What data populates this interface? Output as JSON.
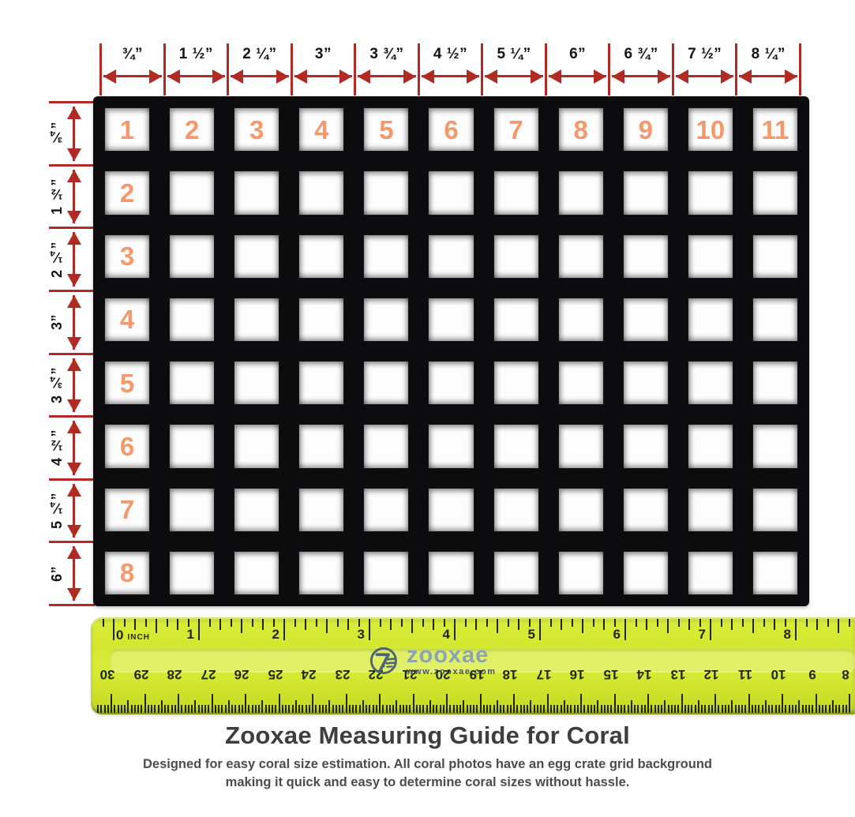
{
  "colors": {
    "arrow_red": "#b22a24",
    "number_orange": "#f4996b",
    "grid_black": "#0c0c0e",
    "ruler_yellow": "#d4e830",
    "ruler_groove": "#e4f176",
    "tick_dark": "#1f2705",
    "title_gray": "#3e3e3e",
    "logo_blue": "#8ca3b2"
  },
  "top_scale": {
    "labels": [
      "¾”",
      "1 ½”",
      "2 ¼”",
      "3”",
      "3 ¾”",
      "4 ½”",
      "5 ¼”",
      "6”",
      "6 ¾”",
      "7 ½”",
      "8 ¼”"
    ]
  },
  "left_scale": {
    "labels": [
      "¾”",
      "1 ½”",
      "2 ¼”",
      "3”",
      "3 ¾”",
      "4 ½”",
      "5 ¼”",
      "6”"
    ]
  },
  "grid": {
    "rows": 8,
    "columns": 11,
    "top_row_numbers": [
      "1",
      "2",
      "3",
      "4",
      "5",
      "6",
      "7",
      "8",
      "9",
      "10",
      "11"
    ],
    "first_column_numbers": [
      "2",
      "3",
      "4",
      "5",
      "6",
      "7",
      "8"
    ]
  },
  "ruler": {
    "inch_zero_label": "0",
    "inch_unit_label": "INCH",
    "inch_numbers": [
      "1",
      "2",
      "3",
      "4",
      "5",
      "6",
      "7",
      "8"
    ],
    "cm_numbers": [
      "30",
      "29",
      "28",
      "27",
      "26",
      "25",
      "24",
      "23",
      "22",
      "21",
      "20",
      "19",
      "18",
      "17",
      "16",
      "15",
      "14",
      "13",
      "12",
      "11",
      "10",
      "9",
      "8"
    ],
    "logo": {
      "brand": "zooxae",
      "website": "www.zooxae.com"
    }
  },
  "footer": {
    "title": "Zooxae Measuring Guide for Coral",
    "subtitle_line1": "Designed for easy coral size estimation. All coral photos have an egg crate grid background",
    "subtitle_line2": "making it quick and easy to determine coral sizes without hassle."
  }
}
